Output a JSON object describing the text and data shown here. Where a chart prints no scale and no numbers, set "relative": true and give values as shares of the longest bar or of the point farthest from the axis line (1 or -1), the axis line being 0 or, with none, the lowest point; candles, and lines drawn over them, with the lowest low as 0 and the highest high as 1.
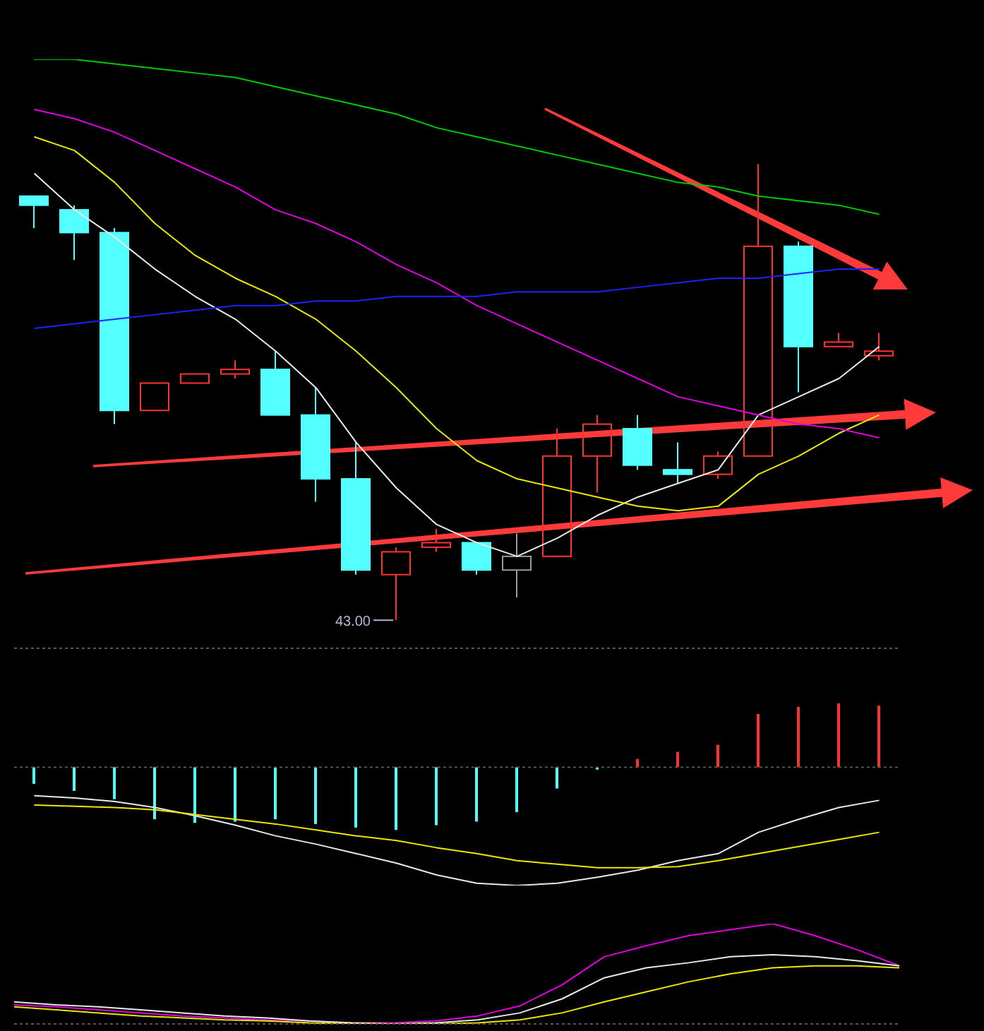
{
  "chart_data": [
    {
      "type": "candlestick",
      "relative": true,
      "tick_labels": false,
      "categories": [
        null,
        null,
        null,
        null,
        null,
        null,
        null,
        null,
        null,
        null,
        null,
        null,
        null,
        null,
        null,
        null,
        null,
        null,
        null,
        null,
        null,
        null
      ],
      "ohlc": [
        [
          0.93,
          0.93,
          0.86,
          0.91
        ],
        [
          0.9,
          0.91,
          0.79,
          0.85
        ],
        [
          0.85,
          0.86,
          0.43,
          0.46
        ],
        [
          0.46,
          0.52,
          0.46,
          0.52
        ],
        [
          0.52,
          0.54,
          0.52,
          0.54
        ],
        [
          0.54,
          0.57,
          0.53,
          0.55
        ],
        [
          0.55,
          0.59,
          0.45,
          0.45
        ],
        [
          0.45,
          0.51,
          0.26,
          0.31
        ],
        [
          0.31,
          0.39,
          0.1,
          0.11
        ],
        [
          0.1,
          0.16,
          0.0,
          0.15
        ],
        [
          0.16,
          0.2,
          0.15,
          0.17
        ],
        [
          0.17,
          0.17,
          0.1,
          0.11
        ],
        [
          0.11,
          0.19,
          0.05,
          0.14
        ],
        [
          0.14,
          0.42,
          0.14,
          0.36
        ],
        [
          0.36,
          0.45,
          0.28,
          0.43
        ],
        [
          0.42,
          0.45,
          0.33,
          0.34
        ],
        [
          0.33,
          0.39,
          0.3,
          0.32
        ],
        [
          0.32,
          0.37,
          0.31,
          0.36
        ],
        [
          0.36,
          1.0,
          0.36,
          0.82
        ],
        [
          0.82,
          0.83,
          0.5,
          0.6
        ],
        [
          0.6,
          0.63,
          0.6,
          0.61
        ],
        [
          0.58,
          0.63,
          0.57,
          0.59
        ]
      ],
      "colors": [
        "#54ffff",
        "#54ffff",
        "#54ffff",
        "#ff3232",
        "#ff3232",
        "#ff3232",
        "#54ffff",
        "#54ffff",
        "#54ffff",
        "#ff3232",
        "#ff3232",
        "#54ffff",
        "#9a9a9a",
        "#ff3232",
        "#ff3232",
        "#54ffff",
        "#54ffff",
        "#ff3232",
        "#ff3232",
        "#54ffff",
        "#ff3232",
        "#ff3232"
      ],
      "series": [
        {
          "type": "line",
          "color": "#e8e8e8",
          "values": [
            0.98,
            0.9,
            0.84,
            0.77,
            0.71,
            0.66,
            0.59,
            0.51,
            0.39,
            0.29,
            0.21,
            0.17,
            0.14,
            0.18,
            0.23,
            0.27,
            0.3,
            0.33,
            0.45,
            0.49,
            0.53,
            0.6
          ]
        },
        {
          "type": "line",
          "color": "#e8e800",
          "values": [
            1.06,
            1.03,
            0.96,
            0.87,
            0.8,
            0.75,
            0.71,
            0.66,
            0.59,
            0.51,
            0.42,
            0.35,
            0.31,
            0.29,
            0.27,
            0.25,
            0.24,
            0.25,
            0.32,
            0.36,
            0.41,
            0.45
          ]
        },
        {
          "type": "line",
          "color": "#e000e0",
          "values": [
            1.12,
            1.1,
            1.07,
            1.03,
            0.99,
            0.95,
            0.9,
            0.87,
            0.83,
            0.78,
            0.74,
            0.69,
            0.65,
            0.61,
            0.57,
            0.53,
            0.49,
            0.47,
            0.45,
            0.43,
            0.42,
            0.4
          ]
        },
        {
          "type": "line",
          "color": "#2020ff",
          "values": [
            0.64,
            0.65,
            0.66,
            0.67,
            0.68,
            0.69,
            0.69,
            0.7,
            0.7,
            0.71,
            0.71,
            0.71,
            0.72,
            0.72,
            0.72,
            0.73,
            0.74,
            0.75,
            0.75,
            0.76,
            0.77,
            0.77
          ]
        },
        {
          "type": "line",
          "color": "#00c800",
          "values": [
            1.23,
            1.23,
            1.22,
            1.21,
            1.2,
            1.19,
            1.17,
            1.15,
            1.13,
            1.11,
            1.08,
            1.06,
            1.04,
            1.02,
            1.0,
            0.98,
            0.96,
            0.95,
            0.93,
            0.92,
            0.91,
            0.89
          ]
        }
      ],
      "annotations": [
        "43.00"
      ]
    },
    {
      "type": "bar",
      "relative": true,
      "tick_labels": false,
      "ref_lines": [
        {
          "axis": "y",
          "value": 0,
          "color": "#555555",
          "line_style": "dotted"
        }
      ],
      "categories": [
        null,
        null,
        null,
        null,
        null,
        null,
        null,
        null,
        null,
        null,
        null,
        null,
        null,
        null,
        null,
        null,
        null,
        null,
        null,
        null,
        null,
        null
      ],
      "series": [
        {
          "type": "bar",
          "colors": [
            "#54ffff",
            "#54ffff",
            "#54ffff",
            "#54ffff",
            "#54ffff",
            "#54ffff",
            "#54ffff",
            "#54ffff",
            "#54ffff",
            "#54ffff",
            "#54ffff",
            "#54ffff",
            "#54ffff",
            "#54ffff",
            "#54ffff",
            "#ff3232",
            "#ff3232",
            "#ff3232",
            "#ff3232",
            "#ff3232",
            "#ff3232",
            "#ff3232"
          ],
          "values": [
            -0.14,
            -0.2,
            -0.27,
            -0.44,
            -0.47,
            -0.46,
            -0.44,
            -0.48,
            -0.51,
            -0.53,
            -0.49,
            -0.46,
            -0.38,
            -0.18,
            -0.02,
            0.07,
            0.13,
            0.19,
            0.45,
            0.51,
            0.54,
            0.52
          ]
        },
        {
          "type": "line",
          "color": "#e8e8e8",
          "values": [
            -0.24,
            -0.26,
            -0.29,
            -0.34,
            -0.41,
            -0.49,
            -0.58,
            -0.65,
            -0.73,
            -0.81,
            -0.91,
            -0.98,
            -1.0,
            -0.98,
            -0.93,
            -0.87,
            -0.79,
            -0.73,
            -0.55,
            -0.44,
            -0.34,
            -0.28
          ]
        },
        {
          "type": "line",
          "color": "#e8e800",
          "values": [
            -0.32,
            -0.33,
            -0.34,
            -0.36,
            -0.4,
            -0.44,
            -0.48,
            -0.53,
            -0.58,
            -0.62,
            -0.68,
            -0.73,
            -0.79,
            -0.82,
            -0.85,
            -0.85,
            -0.84,
            -0.79,
            -0.73,
            -0.67,
            -0.61,
            -0.55
          ]
        }
      ]
    },
    {
      "type": "line",
      "relative": true,
      "tick_labels": false,
      "categories": [
        null,
        null,
        null,
        null,
        null,
        null,
        null,
        null,
        null,
        null,
        null,
        null,
        null,
        null,
        null,
        null,
        null,
        null,
        null,
        null,
        null,
        null
      ],
      "series": [
        {
          "color": "#e000e0",
          "values": [
            0.19,
            0.17,
            0.14,
            0.11,
            0.08,
            0.06,
            0.04,
            0.03,
            0.01,
            0.01,
            0.03,
            0.08,
            0.18,
            0.39,
            0.67,
            0.78,
            0.88,
            0.94,
            1.0,
            0.88,
            0.74,
            0.58
          ]
        },
        {
          "color": "#e8e8e8",
          "values": [
            0.22,
            0.19,
            0.17,
            0.14,
            0.11,
            0.08,
            0.06,
            0.03,
            0.01,
            0.0,
            0.01,
            0.04,
            0.11,
            0.25,
            0.46,
            0.56,
            0.61,
            0.67,
            0.69,
            0.67,
            0.63,
            0.58
          ]
        },
        {
          "color": "#e8e800",
          "values": [
            0.17,
            0.14,
            0.11,
            0.08,
            0.06,
            0.04,
            0.03,
            0.01,
            0.0,
            0.0,
            0.0,
            0.01,
            0.04,
            0.11,
            0.22,
            0.32,
            0.42,
            0.5,
            0.56,
            0.58,
            0.58,
            0.56
          ]
        }
      ]
    }
  ]
}
